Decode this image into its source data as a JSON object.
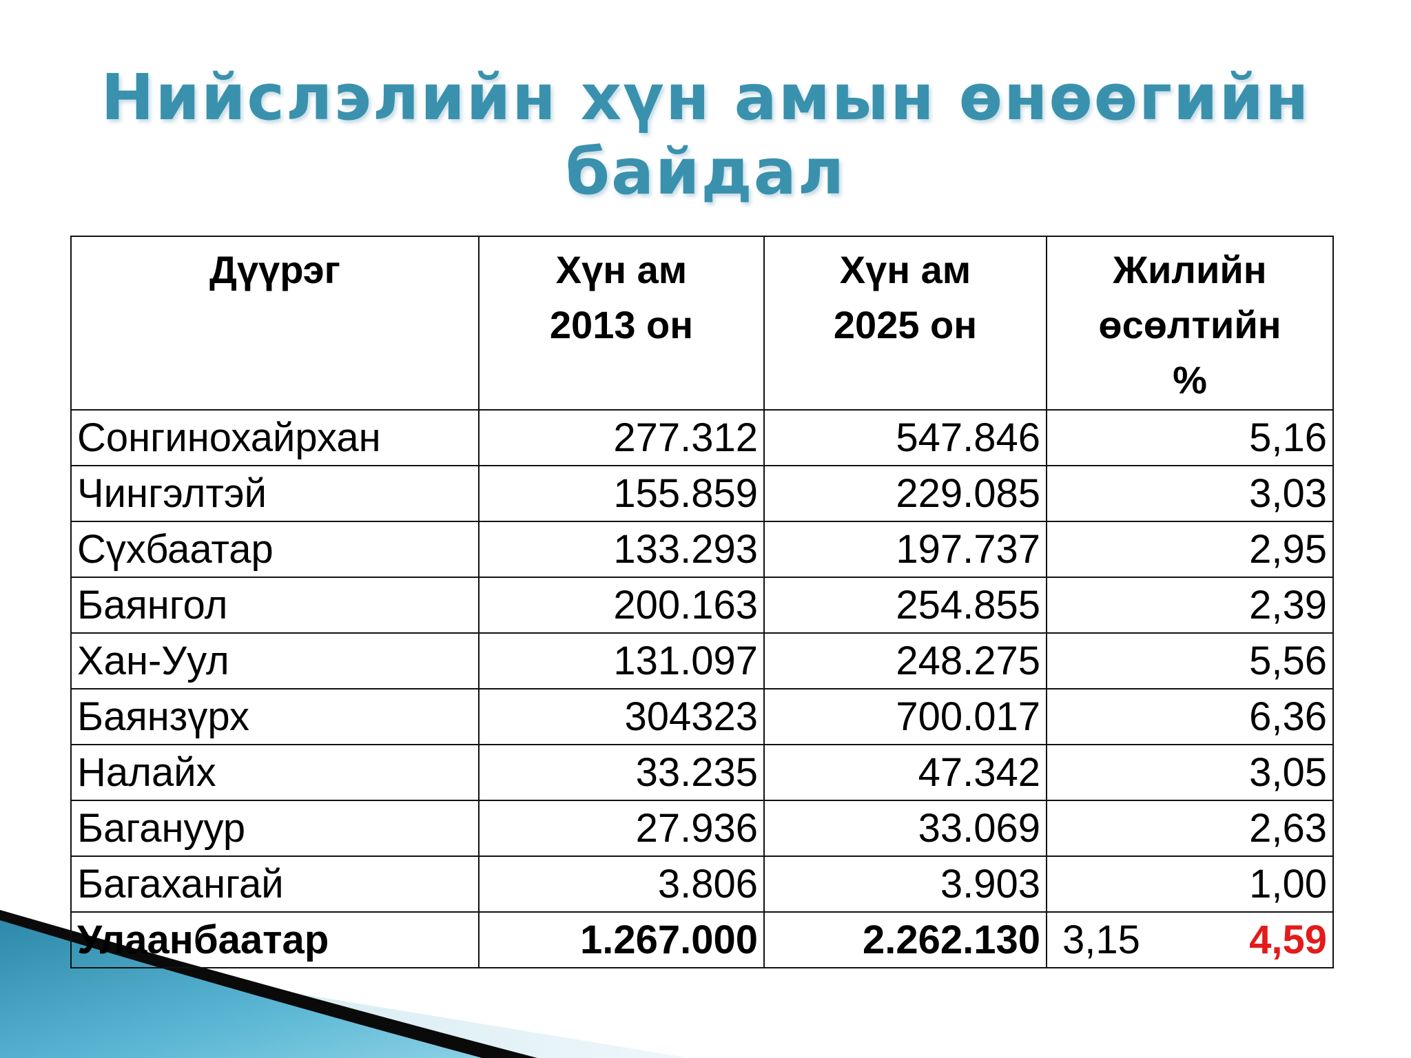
{
  "title": {
    "line1": "Нийслэлийн хүн амын өнөөгийн",
    "line2": "байдал"
  },
  "colors": {
    "title": "#3a91ad",
    "highlight": "#e31b1b",
    "text": "#000000"
  },
  "table": {
    "headers": [
      "Дүүрэг",
      "Хүн ам\n2013 он",
      "Хүн ам\n2025 он",
      "Жилийн\nөсөлтийн\n%"
    ],
    "rows": [
      {
        "district": "Сонгинохайрхан",
        "pop2013": "277.312",
        "pop2025": "547.846",
        "growth": "5,16",
        "highlight": true
      },
      {
        "district": "Чингэлтэй",
        "pop2013": "155.859",
        "pop2025": "229.085",
        "growth": "3,03",
        "highlight": false
      },
      {
        "district": "Сүхбаатар",
        "pop2013": "133.293",
        "pop2025": "197.737",
        "growth": "2,95",
        "highlight": false
      },
      {
        "district": "Баянгол",
        "pop2013": "200.163",
        "pop2025": "254.855",
        "growth": "2,39",
        "highlight": false
      },
      {
        "district": "Хан-Уул",
        "pop2013": "131.097",
        "pop2025": "248.275",
        "growth": "5,56",
        "highlight": true
      },
      {
        "district": "Баянзүрх",
        "pop2013": "304323",
        "pop2025": "700.017",
        "growth": "6,36",
        "highlight": true
      },
      {
        "district": "Налайх",
        "pop2013": "33.235",
        "pop2025": "47.342",
        "growth": "3,05",
        "highlight": false
      },
      {
        "district": "Багануур",
        "pop2013": "27.936",
        "pop2025": "33.069",
        "growth": "2,63",
        "highlight": false
      },
      {
        "district": "Багахангай",
        "pop2013": "3.806",
        "pop2025": "3.903",
        "growth": "1,00",
        "highlight": false
      }
    ],
    "total": {
      "district": "Улаанбаатар",
      "pop2013": "1.267.000",
      "pop2025": "2.262.130",
      "growth_prev": "3,15",
      "growth": "4,59"
    }
  }
}
